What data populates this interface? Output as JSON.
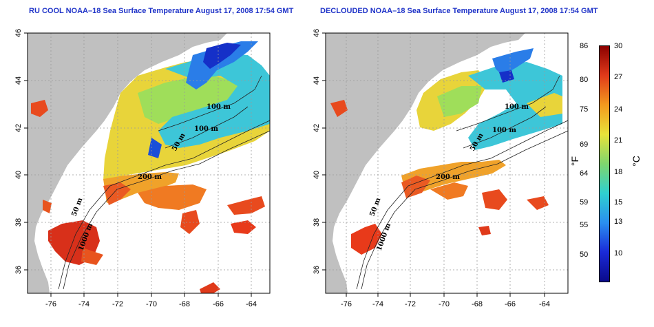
{
  "left": {
    "title": "RU COOL NOAA–18 Sea Surface Temperature August 17, 2008 17:54 GMT",
    "contour_labels": [
      "100 m",
      "100 m",
      "50 m",
      "200 m",
      "50 m",
      "1000 m"
    ]
  },
  "right": {
    "title": "DECLOUDED NOAA–18 Sea Surface Temperature August 17, 2008 17:54 GMT",
    "contour_labels": [
      "100 m",
      "100 m",
      "50 m",
      "200 m",
      "50 m",
      "1000 m"
    ]
  },
  "axes": {
    "x_ticks": [
      "-76",
      "-74",
      "-72",
      "-70",
      "-68",
      "-66",
      "-64"
    ],
    "y_ticks": [
      "46",
      "44",
      "42",
      "40",
      "38",
      "36"
    ]
  },
  "colorbar": {
    "unit_f": "°F",
    "unit_c": "°C",
    "f_ticks": [
      "86",
      "80",
      "75",
      "69",
      "64",
      "59",
      "55",
      "50"
    ],
    "c_ticks": [
      "30",
      "27",
      "24",
      "21",
      "18",
      "15",
      "13",
      "10"
    ],
    "colors": [
      "#8b0000",
      "#e03a1a",
      "#f39a1e",
      "#e8e23a",
      "#7fd66e",
      "#2fd0d0",
      "#2a8ff0",
      "#1a2ad8",
      "#0a0a8a"
    ]
  },
  "map_colors": {
    "land": "#c0c0c0",
    "ocean_nodata": "#ffffff",
    "grid": "#9a9a9a"
  }
}
